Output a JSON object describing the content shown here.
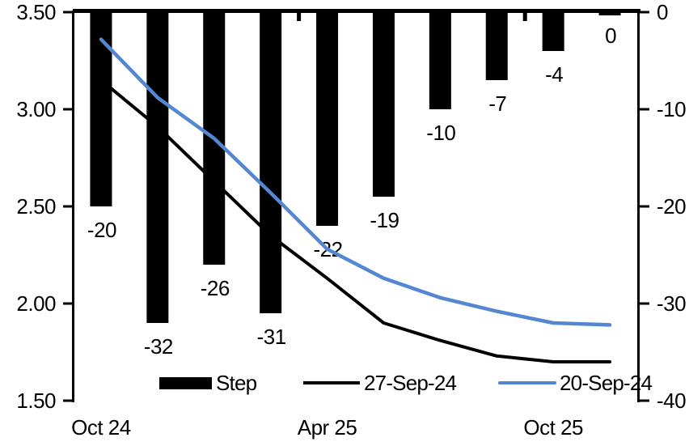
{
  "chart_data": {
    "type": "combo_bar_line",
    "title": "",
    "grid": "off",
    "categories_count": 10,
    "x_axis": {
      "tick_labels": [
        {
          "label": "Oct 24",
          "category_index": 0
        },
        {
          "label": "Apr 25",
          "category_index": 4
        },
        {
          "label": "Oct 25",
          "category_index": 8
        }
      ],
      "minor_tick_category_boundaries": [
        4,
        8
      ]
    },
    "left_axis": {
      "min": 1.5,
      "max": 3.5,
      "tick_labels": [
        "3.50",
        "3.00",
        "2.50",
        "2.00",
        "1.50"
      ],
      "tick_values": [
        3.5,
        3.0,
        2.5,
        2.0,
        1.5
      ]
    },
    "right_axis": {
      "min": -40,
      "max": 0,
      "tick_labels": [
        "0",
        "-10",
        "-20",
        "-30",
        "-40"
      ],
      "tick_values": [
        0,
        -10,
        -20,
        -30,
        -40
      ]
    },
    "bar_series": {
      "name": "Step",
      "axis": "right",
      "color": "#000000",
      "values": [
        -20,
        -32,
        -26,
        -31,
        -22,
        -19,
        -10,
        -7,
        -4,
        0
      ],
      "data_labels": [
        "-20",
        "-32",
        "-26",
        "-31",
        "-22",
        "-19",
        "-10",
        "-7",
        "-4",
        "0"
      ]
    },
    "line_series": [
      {
        "name": "27-Sep-24",
        "axis": "left",
        "color": "#000000",
        "stroke_width": 4,
        "values": [
          3.15,
          2.91,
          2.63,
          2.35,
          2.13,
          1.9,
          1.81,
          1.73,
          1.7,
          1.7
        ]
      },
      {
        "name": "20-Sep-24",
        "axis": "left",
        "color": "#5486d1",
        "stroke_width": 4.5,
        "values": [
          3.36,
          3.06,
          2.85,
          2.57,
          2.28,
          2.13,
          2.03,
          1.96,
          1.9,
          1.89
        ]
      }
    ],
    "legend": {
      "position": "bottom",
      "step_label": "Step",
      "black_line_label": "27-Sep-24",
      "blue_line_label": "20-Sep-24"
    }
  }
}
